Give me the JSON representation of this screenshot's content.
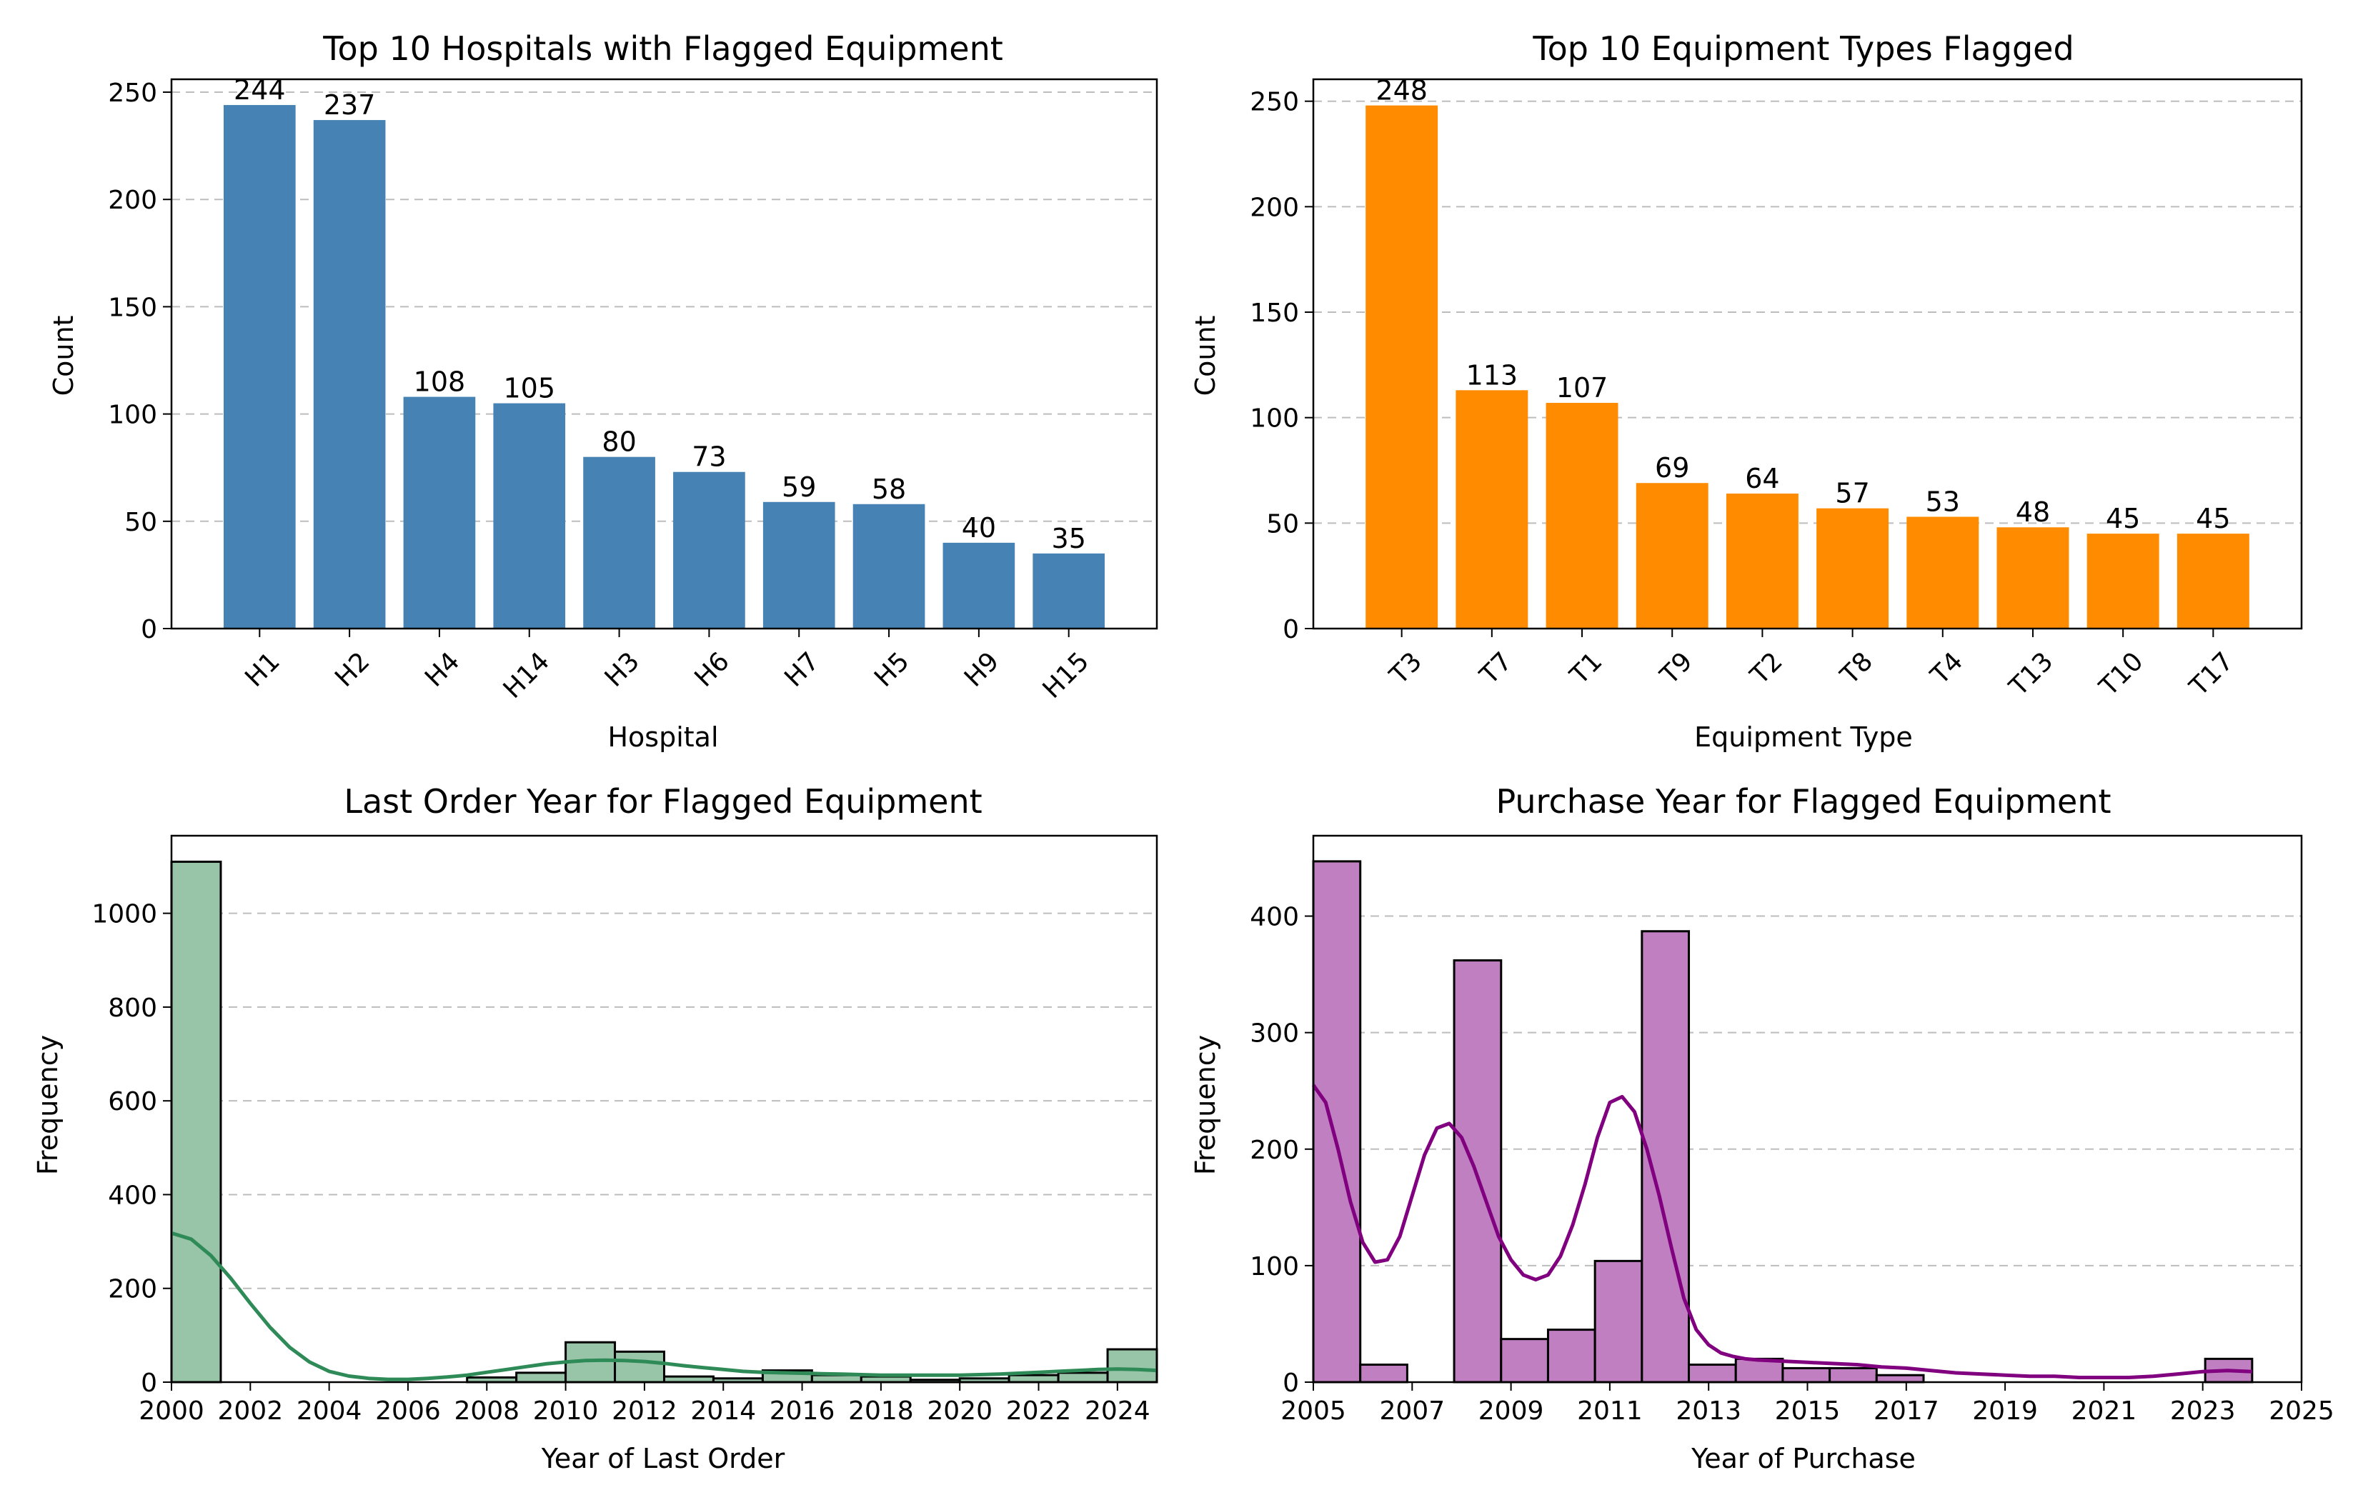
{
  "chart_data": [
    {
      "type": "bar",
      "title": "Top 10 Hospitals with Flagged Equipment",
      "xlabel": "Hospital",
      "ylabel": "Count",
      "categories": [
        "H1",
        "H2",
        "H4",
        "H14",
        "H3",
        "H6",
        "H7",
        "H5",
        "H9",
        "H15"
      ],
      "values": [
        244,
        237,
        108,
        105,
        80,
        73,
        59,
        58,
        40,
        35
      ],
      "ylim": [
        0,
        256
      ],
      "yticks": [
        0,
        50,
        100,
        150,
        200,
        250
      ],
      "color": "#4682b4",
      "grid": "y-dashed",
      "data_labels": true,
      "rotate_xticks": 45
    },
    {
      "type": "bar",
      "title": "Top 10 Equipment Types Flagged",
      "xlabel": "Equipment Type",
      "ylabel": "Count",
      "categories": [
        "T3",
        "T7",
        "T1",
        "T9",
        "T2",
        "T8",
        "T4",
        "T13",
        "T10",
        "T17"
      ],
      "values": [
        248,
        113,
        107,
        69,
        64,
        57,
        53,
        48,
        45,
        45
      ],
      "ylim": [
        0,
        260.4
      ],
      "yticks": [
        0,
        50,
        100,
        150,
        200,
        250
      ],
      "color": "#ff8c00",
      "grid": "y-dashed",
      "data_labels": true,
      "rotate_xticks": 45
    },
    {
      "type": "histogram",
      "title": "Last Order Year for Flagged Equipment",
      "xlabel": "Year of Last Order",
      "ylabel": "Frequency",
      "bins": [
        {
          "x0": 2000,
          "x1": 2001.25,
          "count": 1110
        },
        {
          "x0": 2001.25,
          "x1": 2002.5,
          "count": 0
        },
        {
          "x0": 2002.5,
          "x1": 2003.75,
          "count": 0
        },
        {
          "x0": 2003.75,
          "x1": 2005,
          "count": 0
        },
        {
          "x0": 2005,
          "x1": 2006.25,
          "count": 0
        },
        {
          "x0": 2006.25,
          "x1": 2007.5,
          "count": 0
        },
        {
          "x0": 2007.5,
          "x1": 2008.75,
          "count": 10
        },
        {
          "x0": 2008.75,
          "x1": 2010,
          "count": 20
        },
        {
          "x0": 2010,
          "x1": 2011.25,
          "count": 85
        },
        {
          "x0": 2011.25,
          "x1": 2012.5,
          "count": 65
        },
        {
          "x0": 2012.5,
          "x1": 2013.75,
          "count": 12
        },
        {
          "x0": 2013.75,
          "x1": 2015,
          "count": 8
        },
        {
          "x0": 2015,
          "x1": 2016.25,
          "count": 25
        },
        {
          "x0": 2016.25,
          "x1": 2017.5,
          "count": 15
        },
        {
          "x0": 2017.5,
          "x1": 2018.75,
          "count": 12
        },
        {
          "x0": 2018.75,
          "x1": 2020,
          "count": 5
        },
        {
          "x0": 2020,
          "x1": 2021.25,
          "count": 8
        },
        {
          "x0": 2021.25,
          "x1": 2022.5,
          "count": 15
        },
        {
          "x0": 2022.5,
          "x1": 2023.75,
          "count": 20
        },
        {
          "x0": 2023.75,
          "x1": 2025,
          "count": 70
        }
      ],
      "kde": {
        "x": [
          2000,
          2000.5,
          2001,
          2001.5,
          2002,
          2002.5,
          2003,
          2003.5,
          2004,
          2004.5,
          2005,
          2005.5,
          2006,
          2006.5,
          2007,
          2007.5,
          2008,
          2008.5,
          2009,
          2009.5,
          2010,
          2010.5,
          2011,
          2011.5,
          2012,
          2012.5,
          2013,
          2013.5,
          2014,
          2014.5,
          2015,
          2015.5,
          2016,
          2016.5,
          2017,
          2017.5,
          2018,
          2018.5,
          2019,
          2019.5,
          2020,
          2020.5,
          2021,
          2021.5,
          2022,
          2022.5,
          2023,
          2023.5,
          2024,
          2024.5,
          2025
        ],
        "y": [
          318,
          305,
          270,
          222,
          168,
          117,
          74,
          43,
          23,
          13,
          8,
          6,
          6,
          8,
          11,
          15,
          21,
          27,
          33,
          39,
          43,
          46,
          47,
          46,
          44,
          40,
          35,
          31,
          27,
          23,
          21,
          20,
          19,
          18,
          17,
          16,
          15,
          15,
          15,
          15,
          15,
          16,
          17,
          19,
          21,
          23,
          25,
          27,
          28,
          27,
          25
        ]
      },
      "xlim": [
        2000,
        2025
      ],
      "ylim": [
        0,
        1165.5
      ],
      "xticks": [
        2000,
        2002,
        2004,
        2006,
        2008,
        2010,
        2012,
        2014,
        2016,
        2018,
        2020,
        2022,
        2024
      ],
      "yticks": [
        0,
        200,
        400,
        600,
        800,
        1000
      ],
      "bar_color": "#98c4a8",
      "line_color": "#2e8b57",
      "grid": "y-dashed"
    },
    {
      "type": "histogram",
      "title": "Purchase Year for Flagged Equipment",
      "xlabel": "Year of Purchase",
      "ylabel": "Frequency",
      "bins": [
        {
          "x0": 2005,
          "x1": 2005.95,
          "count": 447
        },
        {
          "x0": 2005.95,
          "x1": 2006.9,
          "count": 15
        },
        {
          "x0": 2006.9,
          "x1": 2007.85,
          "count": 0
        },
        {
          "x0": 2007.85,
          "x1": 2008.8,
          "count": 362
        },
        {
          "x0": 2008.8,
          "x1": 2009.75,
          "count": 37
        },
        {
          "x0": 2009.75,
          "x1": 2010.7,
          "count": 45
        },
        {
          "x0": 2010.7,
          "x1": 2011.65,
          "count": 104
        },
        {
          "x0": 2011.65,
          "x1": 2012.6,
          "count": 387
        },
        {
          "x0": 2012.6,
          "x1": 2013.55,
          "count": 15
        },
        {
          "x0": 2013.55,
          "x1": 2014.5,
          "count": 20
        },
        {
          "x0": 2014.5,
          "x1": 2015.45,
          "count": 12
        },
        {
          "x0": 2015.45,
          "x1": 2016.4,
          "count": 12
        },
        {
          "x0": 2016.4,
          "x1": 2017.35,
          "count": 6
        },
        {
          "x0": 2017.35,
          "x1": 2018.3,
          "count": 0
        },
        {
          "x0": 2018.3,
          "x1": 2019.25,
          "count": 0
        },
        {
          "x0": 2019.25,
          "x1": 2020.2,
          "count": 0
        },
        {
          "x0": 2020.2,
          "x1": 2021.15,
          "count": 0
        },
        {
          "x0": 2021.15,
          "x1": 2022.1,
          "count": 0
        },
        {
          "x0": 2022.1,
          "x1": 2023.05,
          "count": 0
        },
        {
          "x0": 2023.05,
          "x1": 2024,
          "count": 20
        }
      ],
      "kde": {
        "x": [
          2005,
          2005.25,
          2005.5,
          2005.75,
          2006,
          2006.25,
          2006.5,
          2006.75,
          2007,
          2007.25,
          2007.5,
          2007.75,
          2008,
          2008.25,
          2008.5,
          2008.75,
          2009,
          2009.25,
          2009.5,
          2009.75,
          2010,
          2010.25,
          2010.5,
          2010.75,
          2011,
          2011.25,
          2011.5,
          2011.75,
          2012,
          2012.25,
          2012.5,
          2012.75,
          2013,
          2013.25,
          2013.5,
          2013.75,
          2014,
          2014.5,
          2015,
          2015.5,
          2016,
          2016.5,
          2017,
          2017.5,
          2018,
          2018.5,
          2019,
          2019.5,
          2020,
          2020.5,
          2021,
          2021.5,
          2022,
          2022.5,
          2023,
          2023.5,
          2024
        ],
        "y": [
          255,
          240,
          200,
          155,
          120,
          103,
          105,
          125,
          160,
          195,
          218,
          222,
          210,
          185,
          155,
          125,
          105,
          92,
          88,
          92,
          108,
          135,
          170,
          210,
          240,
          245,
          232,
          200,
          160,
          115,
          72,
          45,
          32,
          25,
          22,
          20,
          19,
          18,
          17,
          16,
          15,
          13,
          12,
          10,
          8,
          7,
          6,
          5,
          5,
          4,
          4,
          4,
          5,
          7,
          9,
          10,
          9
        ]
      },
      "xlim": [
        2005,
        2025
      ],
      "ylim": [
        0,
        469
      ],
      "xticks": [
        2005,
        2007,
        2009,
        2011,
        2013,
        2015,
        2017,
        2019,
        2021,
        2023,
        2025
      ],
      "yticks": [
        0,
        100,
        200,
        300,
        400
      ],
      "bar_color": "#c07fc0",
      "line_color": "#800080",
      "grid": "y-dashed"
    }
  ]
}
